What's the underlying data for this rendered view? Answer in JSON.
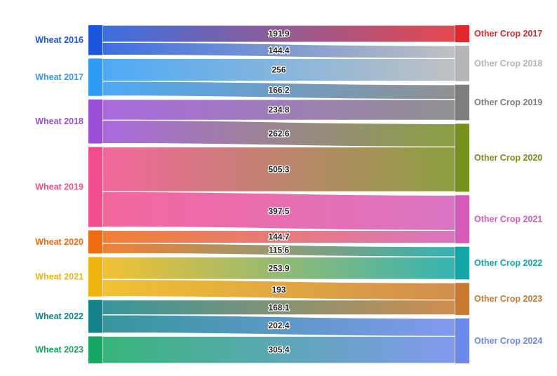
{
  "chart_data": {
    "type": "sankey",
    "sources": [
      {
        "name": "Wheat 2016",
        "color": "#1a56db"
      },
      {
        "name": "Wheat 2017",
        "color": "#2e9bf5"
      },
      {
        "name": "Wheat 2018",
        "color": "#9b4fd9"
      },
      {
        "name": "Wheat 2019",
        "color": "#f24d8c"
      },
      {
        "name": "Wheat 2020",
        "color": "#f06a0f"
      },
      {
        "name": "Wheat 2021",
        "color": "#f0b60f"
      },
      {
        "name": "Wheat 2022",
        "color": "#12848a"
      },
      {
        "name": "Wheat 2023",
        "color": "#14a863"
      }
    ],
    "targets": [
      {
        "name": "Other Crop 2017",
        "color": "#e0282e"
      },
      {
        "name": "Other Crop 2018",
        "color": "#b4b6b8"
      },
      {
        "name": "Other Crop 2019",
        "color": "#7d7d7d"
      },
      {
        "name": "Other Crop 2020",
        "color": "#76901e"
      },
      {
        "name": "Other Crop 2021",
        "color": "#d45cb8"
      },
      {
        "name": "Other Crop 2022",
        "color": "#12a6a6"
      },
      {
        "name": "Other Crop 2023",
        "color": "#c97a30"
      },
      {
        "name": "Other Crop 2024",
        "color": "#6d88ec"
      }
    ],
    "flows": [
      {
        "source": 0,
        "target": 0,
        "value": 191.9,
        "label": "191.9"
      },
      {
        "source": 0,
        "target": 1,
        "value": 144.4,
        "label": "144.4"
      },
      {
        "source": 1,
        "target": 1,
        "value": 256,
        "label": "256"
      },
      {
        "source": 1,
        "target": 2,
        "value": 166.2,
        "label": "166.2"
      },
      {
        "source": 2,
        "target": 2,
        "value": 234.8,
        "label": "234.8"
      },
      {
        "source": 2,
        "target": 3,
        "value": 262.6,
        "label": "262.6"
      },
      {
        "source": 3,
        "target": 3,
        "value": 505.3,
        "label": "505.3"
      },
      {
        "source": 3,
        "target": 4,
        "value": 397.5,
        "label": "397.5"
      },
      {
        "source": 4,
        "target": 4,
        "value": 144.7,
        "label": "144.7"
      },
      {
        "source": 4,
        "target": 5,
        "value": 115.6,
        "label": "115.6"
      },
      {
        "source": 5,
        "target": 5,
        "value": 253.9,
        "label": "253.9"
      },
      {
        "source": 5,
        "target": 6,
        "value": 193,
        "label": "193"
      },
      {
        "source": 6,
        "target": 6,
        "value": 168.1,
        "label": "168.1"
      },
      {
        "source": 6,
        "target": 7,
        "value": 202.4,
        "label": "202.4"
      },
      {
        "source": 7,
        "target": 7,
        "value": 305.4,
        "label": "305.4"
      }
    ]
  }
}
